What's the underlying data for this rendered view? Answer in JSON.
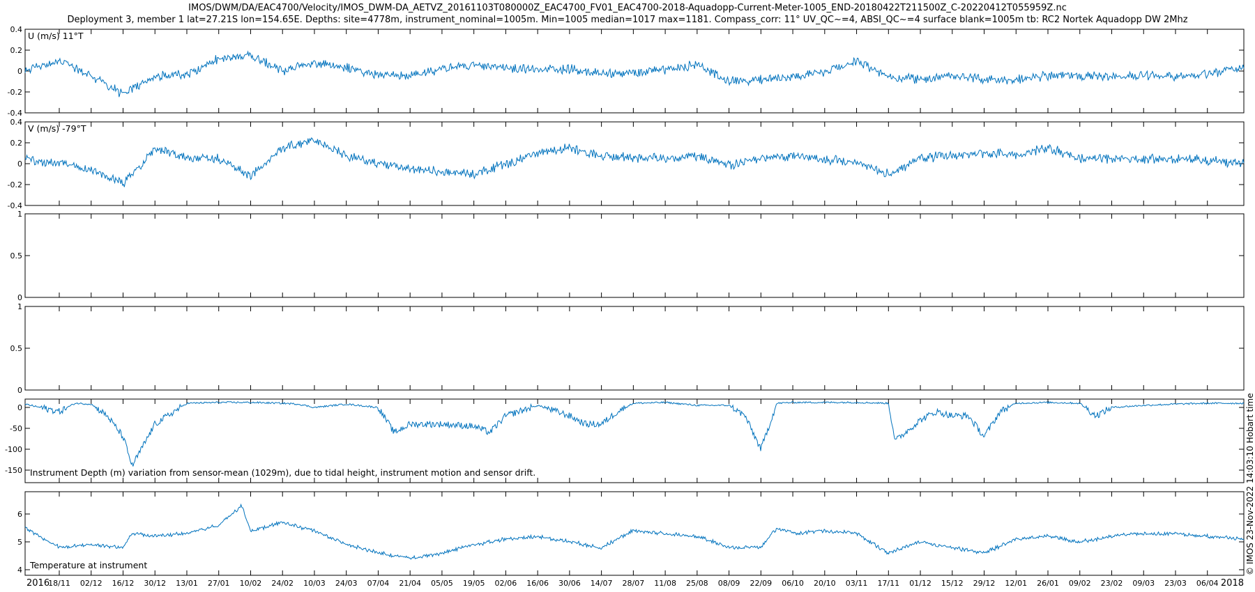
{
  "title": {
    "line1": "IMOS/DWM/DA/EAC4700/Velocity/IMOS_DWM-DA_AETVZ_20161103T080000Z_EAC4700_FV01_EAC4700-2018-Aquadopp-Current-Meter-1005_END-20180422T211500Z_C-20220412T055959Z.nc",
    "line2": "Deployment 3, member 1 lat=27.21S lon=154.65E. Depths: site=4778m, instrument_nominal=1005m. Min=1005 median=1017 max=1181. Compass_corr: 11° UV_QC~=4, ABSI_QC~=4 surface blank=1005m tb: RC2 Nortek Aquadopp DW 2Mhz"
  },
  "credit": "© IMOS 23-Nov-2022 14:03:10 Hobart time",
  "colors": {
    "line": "#0072BD",
    "axis": "#000000"
  },
  "chart_data": [
    {
      "type": "line",
      "label": "U (m/s) 11°T",
      "ylim": [
        -0.4,
        0.4
      ],
      "yticks": [
        -0.4,
        -0.2,
        0,
        0.2,
        0.4
      ],
      "ytick_labels": [
        "-0.4",
        "-0.2",
        "0",
        "0.2",
        "0.4"
      ],
      "grid": false,
      "x": [
        "03/11/2016",
        "18/11/2016",
        "02/12/2016",
        "16/12/2016",
        "30/12/2016",
        "13/01/2017",
        "27/01/2017",
        "10/02/2017",
        "24/02/2017",
        "10/03/2017",
        "24/03/2017",
        "07/04/2017",
        "21/04/2017",
        "05/05/2017",
        "19/05/2017",
        "02/06/2017",
        "16/06/2017",
        "30/06/2017",
        "14/07/2017",
        "28/07/2017",
        "11/08/2017",
        "25/08/2017",
        "08/09/2017",
        "22/09/2017",
        "06/10/2017",
        "20/10/2017",
        "03/11/2017",
        "17/11/2017",
        "01/12/2017",
        "15/12/2017",
        "29/12/2017",
        "12/01/2018",
        "26/01/2018",
        "09/02/2018",
        "23/02/2018",
        "09/03/2018",
        "23/03/2018",
        "06/04/2018",
        "22/04/2018"
      ],
      "values": [
        0.0,
        0.1,
        -0.05,
        -0.22,
        -0.05,
        -0.03,
        0.12,
        0.15,
        0.0,
        0.08,
        0.03,
        -0.03,
        -0.05,
        0.02,
        0.06,
        0.03,
        0.02,
        0.02,
        -0.02,
        -0.02,
        0.02,
        0.06,
        -0.1,
        -0.08,
        -0.05,
        -0.02,
        0.1,
        -0.05,
        -0.08,
        -0.05,
        -0.08,
        -0.08,
        -0.05,
        -0.05,
        -0.05,
        -0.05,
        -0.05,
        -0.03,
        0.03
      ]
    },
    {
      "type": "line",
      "label": "V (m/s) -79°T",
      "ylim": [
        -0.4,
        0.4
      ],
      "yticks": [
        -0.4,
        -0.2,
        0,
        0.2,
        0.4
      ],
      "ytick_labels": [
        "-0.4",
        "-0.2",
        "0",
        "0.2",
        "0.4"
      ],
      "grid": false,
      "x": [
        "03/11/2016",
        "18/11/2016",
        "02/12/2016",
        "16/12/2016",
        "30/12/2016",
        "13/01/2017",
        "27/01/2017",
        "10/02/2017",
        "24/02/2017",
        "10/03/2017",
        "24/03/2017",
        "07/04/2017",
        "21/04/2017",
        "05/05/2017",
        "19/05/2017",
        "02/06/2017",
        "16/06/2017",
        "30/06/2017",
        "14/07/2017",
        "28/07/2017",
        "11/08/2017",
        "25/08/2017",
        "08/09/2017",
        "22/09/2017",
        "06/10/2017",
        "20/10/2017",
        "03/11/2017",
        "17/11/2017",
        "01/12/2017",
        "15/12/2017",
        "29/12/2017",
        "12/01/2018",
        "26/01/2018",
        "09/02/2018",
        "23/02/2018",
        "09/03/2018",
        "23/03/2018",
        "06/04/2018",
        "22/04/2018"
      ],
      "values": [
        0.05,
        0.0,
        -0.05,
        -0.2,
        0.15,
        0.05,
        0.05,
        -0.12,
        0.15,
        0.22,
        0.08,
        0.0,
        -0.05,
        -0.08,
        -0.1,
        0.0,
        0.1,
        0.15,
        0.08,
        0.05,
        0.05,
        0.08,
        -0.02,
        0.05,
        0.08,
        0.05,
        0.0,
        -0.1,
        0.05,
        0.08,
        0.1,
        0.08,
        0.15,
        0.05,
        0.05,
        0.05,
        0.05,
        0.03,
        0.0
      ]
    },
    {
      "type": "line",
      "label": "",
      "ylim": [
        0,
        1
      ],
      "yticks": [
        0,
        0.5,
        1
      ],
      "ytick_labels": [
        "0",
        "0.5",
        "1"
      ],
      "grid": false,
      "x": [],
      "values": []
    },
    {
      "type": "line",
      "label": "",
      "ylim": [
        0,
        1
      ],
      "yticks": [
        0,
        0.5,
        1
      ],
      "ytick_labels": [
        "0",
        "0.5",
        "1"
      ],
      "grid": false,
      "x": [],
      "values": []
    },
    {
      "type": "line",
      "label": "Instrument Depth (m) variation from sensor-mean (1029m), due to tidal height, instrument motion and sensor drift.",
      "ylim": [
        -180,
        20
      ],
      "yticks": [
        -150,
        -100,
        -50,
        0
      ],
      "ytick_labels": [
        "-150",
        "-100",
        "-50",
        "0"
      ],
      "grid": false,
      "x": [
        "03/11/2016",
        "18/11/2016",
        "25/11/2016",
        "02/12/2016",
        "09/12/2016",
        "16/12/2016",
        "20/12/2016",
        "30/12/2016",
        "13/01/2017",
        "27/01/2017",
        "10/02/2017",
        "24/02/2017",
        "03/03/2017",
        "10/03/2017",
        "24/03/2017",
        "07/04/2017",
        "14/04/2017",
        "21/04/2017",
        "05/05/2017",
        "19/05/2017",
        "26/05/2017",
        "02/06/2017",
        "16/06/2017",
        "30/06/2017",
        "07/07/2017",
        "14/07/2017",
        "21/07/2017",
        "28/07/2017",
        "11/08/2017",
        "25/08/2017",
        "08/09/2017",
        "15/09/2017",
        "22/09/2017",
        "29/09/2017",
        "06/10/2017",
        "20/10/2017",
        "03/11/2017",
        "17/11/2017",
        "20/11/2017",
        "01/12/2017",
        "08/12/2017",
        "15/12/2017",
        "22/12/2017",
        "29/12/2017",
        "05/01/2018",
        "12/01/2018",
        "26/01/2018",
        "09/02/2018",
        "16/02/2018",
        "23/02/2018",
        "09/03/2018",
        "23/03/2018",
        "06/04/2018",
        "22/04/2018"
      ],
      "values": [
        8,
        -10,
        10,
        8,
        -20,
        -70,
        -140,
        -40,
        10,
        12,
        12,
        10,
        8,
        0,
        8,
        0,
        -60,
        -40,
        -40,
        -45,
        -60,
        -20,
        5,
        -20,
        -40,
        -40,
        -10,
        10,
        12,
        5,
        5,
        -20,
        -100,
        10,
        12,
        12,
        12,
        10,
        -80,
        -30,
        -10,
        -20,
        -20,
        -70,
        -10,
        10,
        12,
        10,
        -20,
        0,
        5,
        8,
        10,
        10
      ]
    },
    {
      "type": "line",
      "label": "Temperature at instrument",
      "ylim": [
        3.8,
        6.8
      ],
      "yticks": [
        4,
        5,
        6
      ],
      "ytick_labels": [
        "4",
        "5",
        "6"
      ],
      "grid": false,
      "x": [
        "03/11/2016",
        "18/11/2016",
        "02/12/2016",
        "16/12/2016",
        "20/12/2016",
        "30/12/2016",
        "13/01/2017",
        "27/01/2017",
        "06/02/2017",
        "10/02/2017",
        "24/02/2017",
        "10/03/2017",
        "24/03/2017",
        "07/04/2017",
        "21/04/2017",
        "05/05/2017",
        "19/05/2017",
        "02/06/2017",
        "16/06/2017",
        "30/06/2017",
        "14/07/2017",
        "28/07/2017",
        "11/08/2017",
        "25/08/2017",
        "08/09/2017",
        "22/09/2017",
        "29/09/2017",
        "06/10/2017",
        "20/10/2017",
        "03/11/2017",
        "17/11/2017",
        "01/12/2017",
        "15/12/2017",
        "29/12/2017",
        "12/01/2018",
        "26/01/2018",
        "09/02/2018",
        "23/02/2018",
        "09/03/2018",
        "23/03/2018",
        "06/04/2018",
        "22/04/2018"
      ],
      "values": [
        5.5,
        4.8,
        4.9,
        4.8,
        5.3,
        5.2,
        5.3,
        5.6,
        6.3,
        5.4,
        5.7,
        5.4,
        4.9,
        4.6,
        4.4,
        4.6,
        4.9,
        5.1,
        5.2,
        5.0,
        4.8,
        5.4,
        5.3,
        5.2,
        4.8,
        4.8,
        5.5,
        5.3,
        5.4,
        5.3,
        4.6,
        5.0,
        4.8,
        4.6,
        5.1,
        5.2,
        5.0,
        5.2,
        5.3,
        5.3,
        5.2,
        5.1
      ]
    }
  ],
  "xaxis": {
    "start": "03/11/2016",
    "end": "22/04/2018",
    "tick_dates": [
      "18/11/2016",
      "02/12/2016",
      "16/12/2016",
      "30/12/2016",
      "13/01/2017",
      "27/01/2017",
      "10/02/2017",
      "24/02/2017",
      "10/03/2017",
      "24/03/2017",
      "07/04/2017",
      "21/04/2017",
      "05/05/2017",
      "19/05/2017",
      "02/06/2017",
      "16/06/2017",
      "30/06/2017",
      "14/07/2017",
      "28/07/2017",
      "11/08/2017",
      "25/08/2017",
      "08/09/2017",
      "22/09/2017",
      "06/10/2017",
      "20/10/2017",
      "03/11/2017",
      "17/11/2017",
      "01/12/2017",
      "15/12/2017",
      "29/12/2017",
      "12/01/2018",
      "26/01/2018",
      "09/02/2018",
      "23/02/2018",
      "09/03/2018",
      "23/03/2018",
      "06/04/2018"
    ],
    "tick_labels": [
      "18/11",
      "02/12",
      "16/12",
      "30/12",
      "13/01",
      "27/01",
      "10/02",
      "24/02",
      "10/03",
      "24/03",
      "07/04",
      "21/04",
      "05/05",
      "19/05",
      "02/06",
      "16/06",
      "30/06",
      "14/07",
      "28/07",
      "11/08",
      "25/08",
      "08/09",
      "22/09",
      "06/10",
      "20/10",
      "03/11",
      "17/11",
      "01/12",
      "15/12",
      "29/12",
      "12/01",
      "26/01",
      "09/02",
      "23/02",
      "09/03",
      "23/03",
      "06/04"
    ],
    "year_start": "2016",
    "year_end": "2018"
  }
}
